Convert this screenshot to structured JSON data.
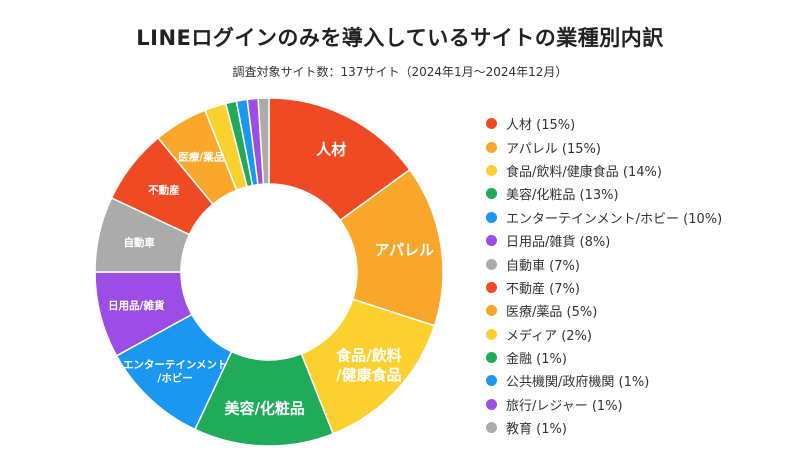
{
  "header": {
    "title": "LINEログインのみを導入しているサイトの業種別内訳",
    "subtitle": "調査対象サイト数：137サイト（2024年1月〜2024年12月）"
  },
  "chart_data": {
    "type": "pie",
    "title": "LINEログインのみを導入しているサイトの業種別内訳",
    "subtitle": "調査対象サイト数：137サイト（2024年1月〜2024年12月）",
    "donut": true,
    "start_angle": "12 o'clock",
    "direction": "clockwise",
    "legend_position": "right",
    "slices": [
      {
        "name": "人材",
        "value": 15,
        "color": "#ef4a24",
        "legend": "人材 (15%)",
        "label": [
          "人材"
        ]
      },
      {
        "name": "アパレル",
        "value": 15,
        "color": "#f8a72a",
        "legend": "アパレル (15%)",
        "label": [
          "アパレル"
        ]
      },
      {
        "name": "食品/飲料/健康食品",
        "value": 14,
        "color": "#fcd02f",
        "legend": "食品/飲料/健康食品 (14%)",
        "label": [
          "食品/飲料",
          "/健康食品"
        ]
      },
      {
        "name": "美容/化粧品",
        "value": 13,
        "color": "#1fab58",
        "legend": "美容/化粧品 (13%)",
        "label": [
          "美容/化粧品"
        ]
      },
      {
        "name": "エンターテインメント/ホビー",
        "value": 10,
        "color": "#1a97f1",
        "legend": "エンターテインメント/ホビー (10%)",
        "label": [
          "エンターテインメント",
          "/ホビー"
        ]
      },
      {
        "name": "日用品/雑貨",
        "value": 8,
        "color": "#9b4de6",
        "legend": "日用品/雑貨 (8%)",
        "label": [
          "日用品/雑貨"
        ]
      },
      {
        "name": "自動車",
        "value": 7,
        "color": "#ababab",
        "legend": "自動車 (7%)",
        "label": [
          "自動車"
        ]
      },
      {
        "name": "不動産",
        "value": 7,
        "color": "#ef4a24",
        "legend": "不動産 (7%)",
        "label": [
          "不動産"
        ]
      },
      {
        "name": "医療/薬品",
        "value": 5,
        "color": "#f8a72a",
        "legend": "医療/薬品 (5%)",
        "label": [
          "医療/薬品"
        ]
      },
      {
        "name": "メディア",
        "value": 2,
        "color": "#fcd02f",
        "legend": "メディア (2%)",
        "label": []
      },
      {
        "name": "金融",
        "value": 1,
        "color": "#1fab58",
        "legend": "金融 (1%)",
        "label": []
      },
      {
        "name": "公共機関/政府機関",
        "value": 1,
        "color": "#1a97f1",
        "legend": "公共機関/政府機関 (1%)",
        "label": []
      },
      {
        "name": "旅行/レジャー",
        "value": 1,
        "color": "#9b4de6",
        "legend": "旅行/レジャー (1%)",
        "label": []
      },
      {
        "name": "教育",
        "value": 1,
        "color": "#ababab",
        "legend": "教育 (1%)",
        "label": []
      }
    ]
  }
}
